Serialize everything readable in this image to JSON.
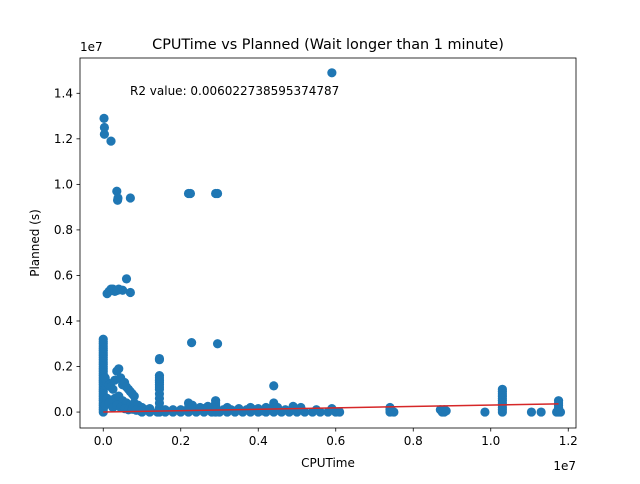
{
  "chart_data": {
    "type": "scatter",
    "title": "CPUTime vs Planned (Wait longer than 1 minute)",
    "xlabel": "CPUTime",
    "ylabel": "Planned (s)",
    "x_offset_text": "1e7",
    "y_offset_text": "1e7",
    "annotation": "R2 value: 0.006022738595374787",
    "xlim": [
      -0.06,
      1.22
    ],
    "ylim": [
      -0.07,
      1.555
    ],
    "x_ticks": [
      0.0,
      0.2,
      0.4,
      0.6,
      0.8,
      1.0,
      1.2
    ],
    "y_ticks": [
      0.0,
      0.2,
      0.4,
      0.6,
      0.8,
      1.0,
      1.2,
      1.4
    ],
    "x_tick_labels": [
      "0.0",
      "0.2",
      "0.4",
      "0.6",
      "0.8",
      "1.0",
      "1.2"
    ],
    "y_tick_labels": [
      "0.0",
      "0.2",
      "0.4",
      "0.6",
      "0.8",
      "1.0",
      "1.2",
      "1.4"
    ],
    "colors": {
      "points": "#1f77b4",
      "fit_line": "#d62728"
    },
    "series": [
      {
        "points": [
          [
            0.0,
            0.0
          ],
          [
            0.0,
            0.01
          ],
          [
            0.0,
            0.02
          ],
          [
            0.0,
            0.03
          ],
          [
            0.0,
            0.04
          ],
          [
            0.0,
            0.05
          ],
          [
            0.0,
            0.06
          ],
          [
            0.0,
            0.07
          ],
          [
            0.0,
            0.08
          ],
          [
            0.0,
            0.09
          ],
          [
            0.0,
            0.1
          ],
          [
            0.0,
            0.11
          ],
          [
            0.0,
            0.12
          ],
          [
            0.0,
            0.13
          ],
          [
            0.0,
            0.14
          ],
          [
            0.0,
            0.15
          ],
          [
            0.0,
            0.16
          ],
          [
            0.0,
            0.17
          ],
          [
            0.0,
            0.18
          ],
          [
            0.0,
            0.19
          ],
          [
            0.0,
            0.2
          ],
          [
            0.0,
            0.21
          ],
          [
            0.0,
            0.22
          ],
          [
            0.0,
            0.23
          ],
          [
            0.0,
            0.24
          ],
          [
            0.0,
            0.25
          ],
          [
            0.0,
            0.26
          ],
          [
            0.0,
            0.27
          ],
          [
            0.0,
            0.28
          ],
          [
            0.0,
            0.29
          ],
          [
            0.0,
            0.3
          ],
          [
            0.0,
            0.31
          ],
          [
            0.0,
            0.32
          ],
          [
            0.002,
            1.29
          ],
          [
            0.003,
            1.25
          ],
          [
            0.003,
            1.22
          ],
          [
            0.02,
            1.19
          ],
          [
            0.01,
            0.52
          ],
          [
            0.015,
            0.53
          ],
          [
            0.02,
            0.54
          ],
          [
            0.025,
            0.54
          ],
          [
            0.03,
            0.53
          ],
          [
            0.04,
            0.54
          ],
          [
            0.05,
            0.535
          ],
          [
            0.035,
            0.535
          ],
          [
            0.035,
            0.97
          ],
          [
            0.037,
            0.93
          ],
          [
            0.038,
            0.94
          ],
          [
            0.037,
            0.535
          ],
          [
            0.07,
            0.94
          ],
          [
            0.07,
            0.525
          ],
          [
            0.06,
            0.585
          ],
          [
            0.22,
            0.96
          ],
          [
            0.225,
            0.96
          ],
          [
            0.29,
            0.96
          ],
          [
            0.295,
            0.96
          ],
          [
            0.228,
            0.305
          ],
          [
            0.295,
            0.3
          ],
          [
            0.59,
            1.49
          ],
          [
            0.005,
            0.15
          ],
          [
            0.01,
            0.13
          ],
          [
            0.015,
            0.12
          ],
          [
            0.02,
            0.11
          ],
          [
            0.025,
            0.1
          ],
          [
            0.03,
            0.14
          ],
          [
            0.035,
            0.18
          ],
          [
            0.04,
            0.19
          ],
          [
            0.045,
            0.15
          ],
          [
            0.05,
            0.12
          ],
          [
            0.055,
            0.13
          ],
          [
            0.06,
            0.11
          ],
          [
            0.065,
            0.1
          ],
          [
            0.07,
            0.09
          ],
          [
            0.075,
            0.08
          ],
          [
            0.08,
            0.07
          ],
          [
            0.01,
            0.06
          ],
          [
            0.02,
            0.05
          ],
          [
            0.03,
            0.06
          ],
          [
            0.04,
            0.07
          ],
          [
            0.05,
            0.05
          ],
          [
            0.06,
            0.04
          ],
          [
            0.07,
            0.03
          ],
          [
            0.08,
            0.04
          ],
          [
            0.09,
            0.03
          ],
          [
            0.1,
            0.02
          ],
          [
            0.11,
            0.01
          ],
          [
            0.12,
            0.015
          ],
          [
            0.005,
            0.03
          ],
          [
            0.015,
            0.04
          ],
          [
            0.025,
            0.02
          ],
          [
            0.035,
            0.03
          ],
          [
            0.045,
            0.02
          ],
          [
            0.055,
            0.015
          ],
          [
            0.065,
            0.01
          ],
          [
            0.075,
            0.012
          ],
          [
            0.085,
            0.008
          ],
          [
            0.095,
            0.005
          ],
          [
            0.145,
            0.235
          ],
          [
            0.145,
            0.23
          ],
          [
            0.145,
            0.16
          ],
          [
            0.145,
            0.15
          ],
          [
            0.145,
            0.14
          ],
          [
            0.145,
            0.13
          ],
          [
            0.145,
            0.12
          ],
          [
            0.145,
            0.11
          ],
          [
            0.145,
            0.1
          ],
          [
            0.145,
            0.08
          ],
          [
            0.145,
            0.06
          ],
          [
            0.145,
            0.04
          ],
          [
            0.145,
            0.02
          ],
          [
            0.145,
            0.0
          ],
          [
            0.29,
            0.05
          ],
          [
            0.29,
            0.04
          ],
          [
            0.29,
            0.03
          ],
          [
            0.29,
            0.02
          ],
          [
            0.29,
            0.01
          ],
          [
            0.29,
            0.0
          ],
          [
            0.44,
            0.115
          ],
          [
            0.44,
            0.04
          ],
          [
            0.44,
            0.03
          ],
          [
            0.44,
            0.02
          ],
          [
            0.44,
            0.01
          ],
          [
            0.44,
            0.0
          ],
          [
            1.03,
            0.1
          ],
          [
            1.03,
            0.09
          ],
          [
            1.03,
            0.08
          ],
          [
            1.03,
            0.07
          ],
          [
            1.03,
            0.06
          ],
          [
            1.03,
            0.05
          ],
          [
            1.03,
            0.04
          ],
          [
            1.03,
            0.03
          ],
          [
            1.03,
            0.02
          ],
          [
            1.03,
            0.01
          ],
          [
            1.03,
            0.0
          ],
          [
            1.175,
            0.05
          ],
          [
            1.175,
            0.04
          ],
          [
            1.175,
            0.03
          ],
          [
            1.175,
            0.02
          ],
          [
            1.175,
            0.01
          ],
          [
            1.175,
            0.0
          ],
          [
            0.1,
            0.0
          ],
          [
            0.12,
            0.0
          ],
          [
            0.14,
            0.0
          ],
          [
            0.16,
            0.0
          ],
          [
            0.18,
            0.0
          ],
          [
            0.2,
            0.0
          ],
          [
            0.22,
            0.0
          ],
          [
            0.24,
            0.0
          ],
          [
            0.26,
            0.0
          ],
          [
            0.28,
            0.0
          ],
          [
            0.3,
            0.0
          ],
          [
            0.32,
            0.0
          ],
          [
            0.34,
            0.0
          ],
          [
            0.36,
            0.0
          ],
          [
            0.38,
            0.0
          ],
          [
            0.4,
            0.0
          ],
          [
            0.42,
            0.0
          ],
          [
            0.46,
            0.0
          ],
          [
            0.48,
            0.0
          ],
          [
            0.5,
            0.0
          ],
          [
            0.52,
            0.0
          ],
          [
            0.54,
            0.0
          ],
          [
            0.56,
            0.0
          ],
          [
            0.58,
            0.0
          ],
          [
            0.6,
            0.0
          ],
          [
            0.61,
            0.0
          ],
          [
            0.16,
            0.01
          ],
          [
            0.18,
            0.01
          ],
          [
            0.2,
            0.01
          ],
          [
            0.22,
            0.02
          ],
          [
            0.24,
            0.01
          ],
          [
            0.26,
            0.015
          ],
          [
            0.28,
            0.02
          ],
          [
            0.31,
            0.01
          ],
          [
            0.33,
            0.01
          ],
          [
            0.35,
            0.015
          ],
          [
            0.37,
            0.01
          ],
          [
            0.39,
            0.01
          ],
          [
            0.41,
            0.005
          ],
          [
            0.43,
            0.01
          ],
          [
            0.45,
            0.02
          ],
          [
            0.47,
            0.01
          ],
          [
            0.49,
            0.025
          ],
          [
            0.51,
            0.02
          ],
          [
            0.55,
            0.01
          ],
          [
            0.59,
            0.015
          ],
          [
            0.22,
            0.04
          ],
          [
            0.23,
            0.03
          ],
          [
            0.25,
            0.02
          ],
          [
            0.27,
            0.025
          ],
          [
            0.32,
            0.02
          ],
          [
            0.34,
            0.005
          ],
          [
            0.38,
            0.02
          ],
          [
            0.4,
            0.015
          ],
          [
            0.42,
            0.02
          ],
          [
            0.5,
            0.01
          ],
          [
            0.74,
            0.02
          ],
          [
            0.74,
            0.01
          ],
          [
            0.74,
            0.0
          ],
          [
            0.745,
            0.005
          ],
          [
            0.75,
            0.0
          ],
          [
            0.87,
            0.01
          ],
          [
            0.875,
            0.0
          ],
          [
            0.88,
            0.0
          ],
          [
            0.88,
            0.01
          ],
          [
            0.885,
            0.005
          ],
          [
            0.985,
            0.0
          ],
          [
            1.105,
            0.0
          ],
          [
            1.13,
            0.0
          ],
          [
            1.17,
            0.0
          ],
          [
            1.18,
            0.0
          ]
        ]
      }
    ],
    "fit_line": {
      "x": [
        0.0,
        1.175
      ],
      "y": [
        0.0,
        0.036
      ]
    }
  }
}
